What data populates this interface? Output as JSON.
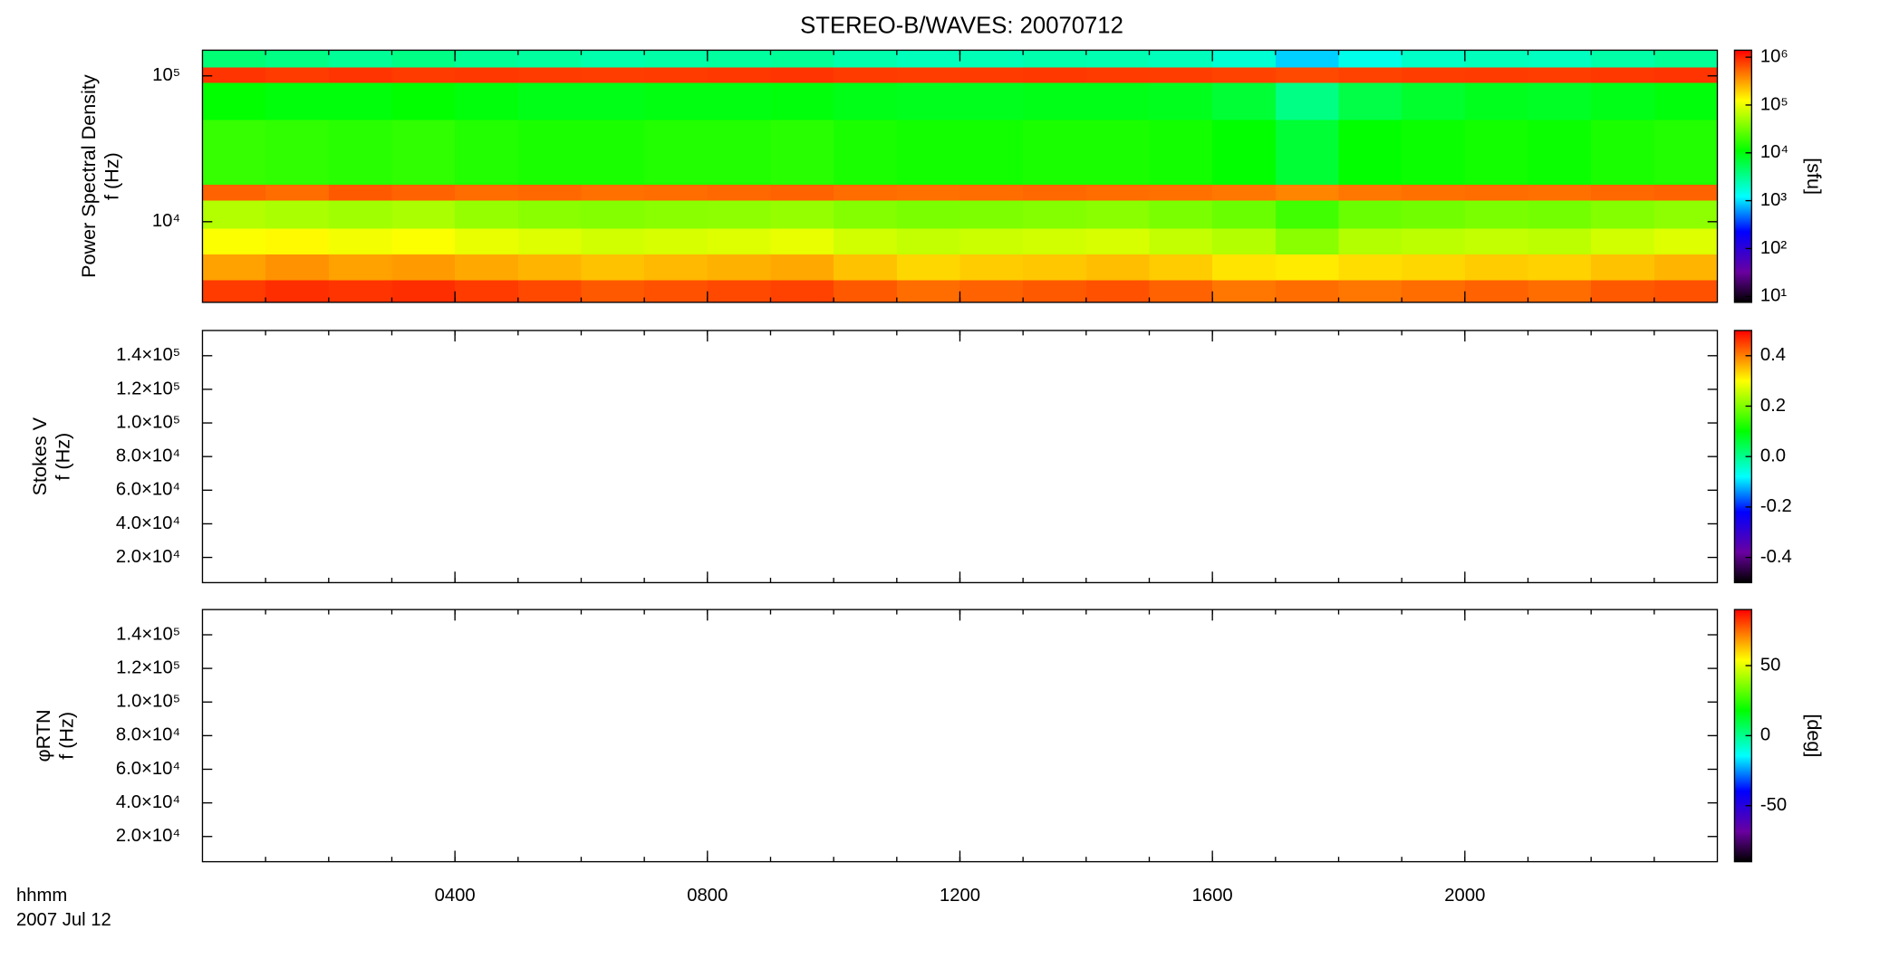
{
  "title": "STEREO-B/WAVES: 20070712",
  "time_axis": {
    "xlim": [
      0,
      24
    ],
    "xticks": [
      {
        "value": 4,
        "label": "0400"
      },
      {
        "value": 8,
        "label": "0800"
      },
      {
        "value": 12,
        "label": "1200"
      },
      {
        "value": 16,
        "label": "1600"
      },
      {
        "value": 20,
        "label": "2000"
      }
    ],
    "label": [
      "hhmm",
      "2007 Jul 12"
    ]
  },
  "colormap": [
    {
      "pos": 0,
      "color": "#000000"
    },
    {
      "pos": 0.12,
      "color": "#6a00a0"
    },
    {
      "pos": 0.28,
      "color": "#0000ff"
    },
    {
      "pos": 0.42,
      "color": "#00ffff"
    },
    {
      "pos": 0.6,
      "color": "#00ff00"
    },
    {
      "pos": 0.8,
      "color": "#ffff00"
    },
    {
      "pos": 1,
      "color": "#ff0000"
    }
  ],
  "chart_data": [
    {
      "type": "spectrogram",
      "ylabel": [
        "Power Spectral Density",
        "f (Hz)"
      ],
      "yscale": "log",
      "ylim": [
        2800,
        150000
      ],
      "yticks": [
        {
          "value": 10000,
          "label": "10⁴"
        },
        {
          "value": 100000,
          "label": "10⁵"
        }
      ],
      "x_bins": [
        0,
        1,
        2,
        3,
        4,
        5,
        6,
        7,
        8,
        9,
        10,
        11,
        12,
        13,
        14,
        15,
        16,
        17,
        18,
        19,
        20,
        21,
        22,
        23,
        24
      ],
      "y_bins": [
        2800,
        4000,
        6000,
        9000,
        14000,
        18000,
        50000,
        90000,
        115000,
        150000
      ],
      "values": [
        [
          800000,
          900000,
          850000,
          900000,
          800000,
          700000,
          600000,
          650000,
          700000,
          750000,
          600000,
          500000,
          550000,
          600000,
          650000,
          550000,
          450000,
          500000,
          450000,
          500000,
          550000,
          500000,
          600000,
          650000
        ],
        [
          300000,
          350000,
          300000,
          320000,
          280000,
          250000,
          220000,
          240000,
          260000,
          280000,
          220000,
          180000,
          200000,
          210000,
          230000,
          200000,
          160000,
          150000,
          170000,
          180000,
          200000,
          190000,
          220000,
          250000
        ],
        [
          120000,
          130000,
          110000,
          120000,
          100000,
          90000,
          80000,
          85000,
          90000,
          100000,
          80000,
          70000,
          75000,
          80000,
          85000,
          70000,
          60000,
          40000,
          60000,
          65000,
          70000,
          65000,
          80000,
          90000
        ],
        [
          60000,
          55000,
          50000,
          55000,
          45000,
          40000,
          38000,
          40000,
          42000,
          45000,
          38000,
          35000,
          36000,
          38000,
          40000,
          35000,
          30000,
          20000,
          30000,
          32000,
          35000,
          33000,
          38000,
          42000
        ],
        [
          550000,
          500000,
          600000,
          550000,
          500000,
          520000,
          480000,
          500000,
          520000,
          550000,
          500000,
          480000,
          500000,
          520000,
          500000,
          480000,
          450000,
          400000,
          450000,
          480000,
          500000,
          480000,
          520000,
          550000
        ],
        [
          18000,
          17000,
          16000,
          17000,
          15000,
          14000,
          14000,
          15000,
          15000,
          16000,
          14000,
          13000,
          13000,
          14000,
          14000,
          13000,
          11000,
          7000,
          11000,
          12000,
          13000,
          12000,
          14000,
          15000
        ],
        [
          11000,
          10000,
          10000,
          11000,
          10000,
          9000,
          9000,
          9500,
          9500,
          10000,
          9000,
          8500,
          8500,
          9000,
          9000,
          8500,
          7000,
          3500,
          6000,
          7500,
          8500,
          8000,
          9000,
          10000
        ],
        [
          850000,
          800000,
          850000,
          800000,
          820000,
          800000,
          780000,
          800000,
          820000,
          850000,
          800000,
          780000,
          800000,
          820000,
          800000,
          780000,
          750000,
          700000,
          750000,
          780000,
          800000,
          780000,
          820000,
          850000
        ],
        [
          4000,
          3500,
          3000,
          3500,
          3000,
          2800,
          2500,
          2600,
          2800,
          3000,
          2500,
          2200,
          2300,
          2500,
          2400,
          2200,
          1800,
          900,
          1500,
          2000,
          2200,
          2100,
          2600,
          3000
        ]
      ],
      "colorbar": {
        "scale": "log",
        "clim": [
          7.5,
          1400000
        ],
        "ticks": [
          {
            "value": 10,
            "label": "10¹"
          },
          {
            "value": 100,
            "label": "10²"
          },
          {
            "value": 1000,
            "label": "10³"
          },
          {
            "value": 10000,
            "label": "10⁴"
          },
          {
            "value": 100000,
            "label": "10⁵"
          },
          {
            "value": 1000000,
            "label": "10⁶"
          }
        ],
        "label": "[sfu]"
      }
    },
    {
      "type": "spectrogram",
      "ylabel": [
        "Stokes V",
        "f (Hz)"
      ],
      "yscale": "linear",
      "ylim": [
        5000,
        155000
      ],
      "yticks": [
        {
          "value": 20000,
          "label": "2.0×10⁴"
        },
        {
          "value": 40000,
          "label": "4.0×10⁴"
        },
        {
          "value": 60000,
          "label": "6.0×10⁴"
        },
        {
          "value": 80000,
          "label": "8.0×10⁴"
        },
        {
          "value": 100000,
          "label": "1.0×10⁵"
        },
        {
          "value": 120000,
          "label": "1.2×10⁵"
        },
        {
          "value": 140000,
          "label": "1.4×10⁵"
        }
      ],
      "colorbar": {
        "scale": "linear",
        "clim": [
          -0.5,
          0.5
        ],
        "ticks": [
          -0.4,
          -0.2,
          {
            "value": 0,
            "label": "0.0"
          },
          0.2,
          0.4
        ]
      }
    },
    {
      "type": "spectrogram",
      "ylabel": [
        "φRTN",
        "f (Hz)"
      ],
      "yscale": "linear",
      "ylim": [
        5000,
        155000
      ],
      "yticks": [
        {
          "value": 20000,
          "label": "2.0×10⁴"
        },
        {
          "value": 40000,
          "label": "4.0×10⁴"
        },
        {
          "value": 60000,
          "label": "6.0×10⁴"
        },
        {
          "value": 80000,
          "label": "8.0×10⁴"
        },
        {
          "value": 100000,
          "label": "1.0×10⁵"
        },
        {
          "value": 120000,
          "label": "1.2×10⁵"
        },
        {
          "value": 140000,
          "label": "1.4×10⁵"
        }
      ],
      "colorbar": {
        "scale": "linear",
        "clim": [
          -90,
          90
        ],
        "ticks": [
          -50,
          0,
          50
        ],
        "label": "[deg]"
      }
    }
  ]
}
